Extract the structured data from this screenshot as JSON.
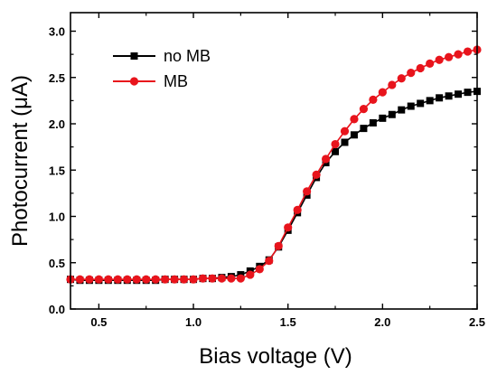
{
  "chart_data": {
    "type": "line",
    "xlabel": "Bias voltage (V)",
    "ylabel": "Photocurrent (μA)",
    "xlim": [
      0.35,
      2.5
    ],
    "ylim": [
      0.0,
      3.2
    ],
    "xticks": [
      0.5,
      1.0,
      1.5,
      2.0,
      2.5
    ],
    "xtick_labels": [
      "0.5",
      "1.0",
      "1.5",
      "2.0",
      "2.5"
    ],
    "yticks": [
      0.0,
      0.5,
      1.0,
      1.5,
      2.0,
      2.5,
      3.0
    ],
    "ytick_labels": [
      "0.0",
      "0.5",
      "1.0",
      "1.5",
      "2.0",
      "2.5",
      "3.0"
    ],
    "grid": false,
    "legend_position": "top-left",
    "series": [
      {
        "name": "no MB",
        "color": "#000000",
        "marker": "square",
        "x": [
          0.35,
          0.4,
          0.45,
          0.5,
          0.55,
          0.6,
          0.65,
          0.7,
          0.75,
          0.8,
          0.85,
          0.9,
          0.95,
          1.0,
          1.05,
          1.1,
          1.15,
          1.2,
          1.25,
          1.3,
          1.35,
          1.4,
          1.45,
          1.5,
          1.55,
          1.6,
          1.65,
          1.7,
          1.75,
          1.8,
          1.85,
          1.9,
          1.95,
          2.0,
          2.05,
          2.1,
          2.15,
          2.2,
          2.25,
          2.3,
          2.35,
          2.4,
          2.45,
          2.5
        ],
        "y": [
          0.32,
          0.31,
          0.31,
          0.31,
          0.31,
          0.31,
          0.31,
          0.31,
          0.31,
          0.31,
          0.32,
          0.32,
          0.32,
          0.32,
          0.33,
          0.33,
          0.34,
          0.35,
          0.37,
          0.41,
          0.46,
          0.53,
          0.67,
          0.85,
          1.04,
          1.23,
          1.42,
          1.58,
          1.7,
          1.8,
          1.88,
          1.95,
          2.01,
          2.06,
          2.1,
          2.15,
          2.19,
          2.22,
          2.25,
          2.28,
          2.3,
          2.32,
          2.34,
          2.35
        ]
      },
      {
        "name": "MB",
        "color": "#e8141c",
        "marker": "circle",
        "x": [
          0.35,
          0.4,
          0.45,
          0.5,
          0.55,
          0.6,
          0.65,
          0.7,
          0.75,
          0.8,
          0.85,
          0.9,
          0.95,
          1.0,
          1.05,
          1.1,
          1.15,
          1.2,
          1.25,
          1.3,
          1.35,
          1.4,
          1.45,
          1.5,
          1.55,
          1.6,
          1.65,
          1.7,
          1.75,
          1.8,
          1.85,
          1.9,
          1.95,
          2.0,
          2.05,
          2.1,
          2.15,
          2.2,
          2.25,
          2.3,
          2.35,
          2.4,
          2.45,
          2.5
        ],
        "y": [
          0.32,
          0.32,
          0.32,
          0.32,
          0.32,
          0.32,
          0.32,
          0.32,
          0.32,
          0.32,
          0.32,
          0.32,
          0.32,
          0.32,
          0.33,
          0.33,
          0.33,
          0.33,
          0.33,
          0.37,
          0.43,
          0.52,
          0.68,
          0.88,
          1.07,
          1.27,
          1.45,
          1.62,
          1.78,
          1.92,
          2.05,
          2.16,
          2.26,
          2.34,
          2.42,
          2.49,
          2.55,
          2.6,
          2.65,
          2.69,
          2.72,
          2.75,
          2.78,
          2.8
        ]
      }
    ]
  }
}
